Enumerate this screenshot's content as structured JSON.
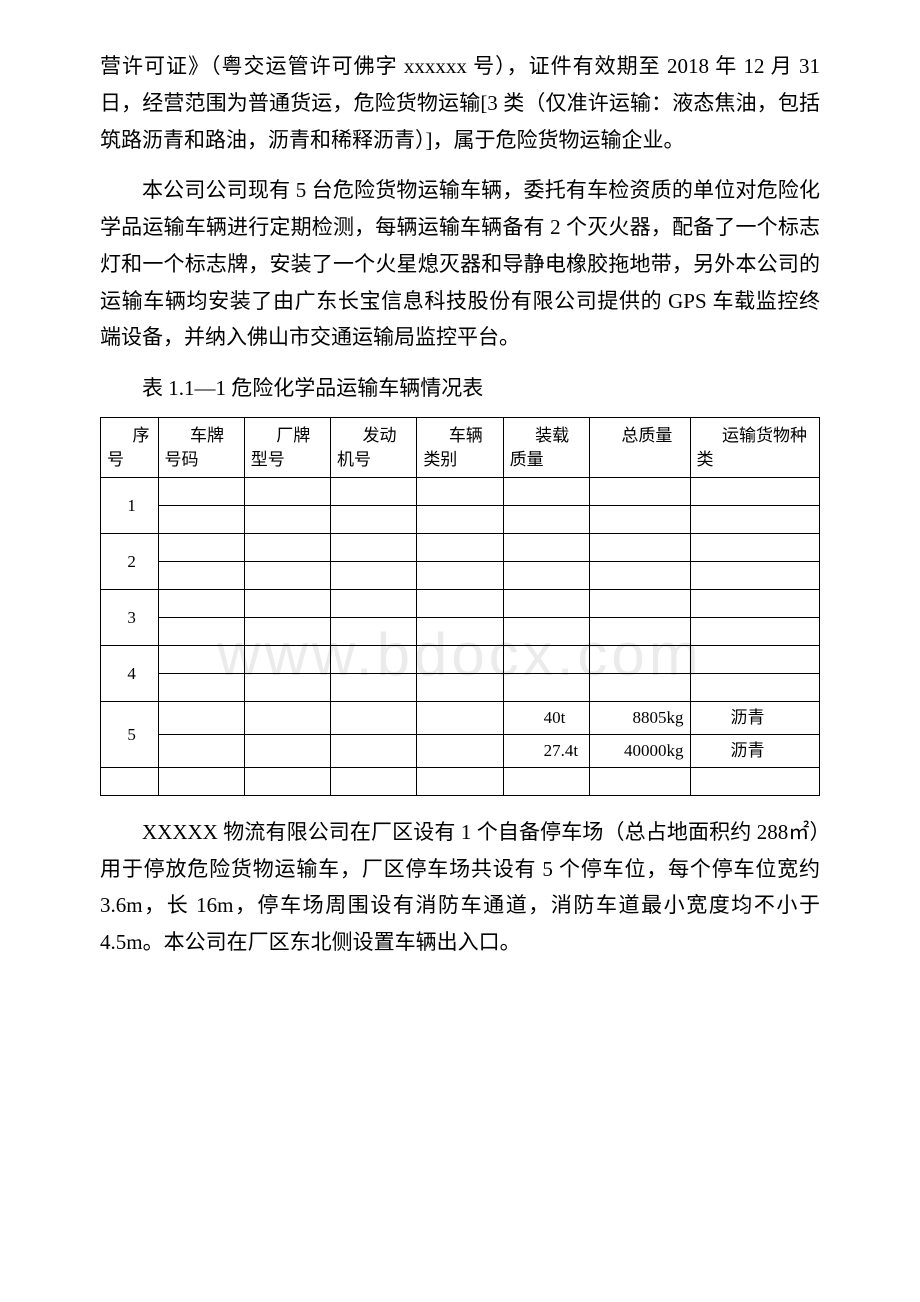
{
  "paragraphs": {
    "p1": "营许可证》（粤交运管许可佛字 xxxxxx 号），证件有效期至 2018 年 12 月 31 日，经营范围为普通货运，危险货物运输[3 类（仅准许运输：液态焦油，包括筑路沥青和路油，沥青和稀释沥青）]，属于危险货物运输企业。",
    "p2": "本公司公司现有 5 台危险货物运输车辆，委托有车检资质的单位对危险化学品运输车辆进行定期检测，每辆运输车辆备有 2 个灭火器，配备了一个标志灯和一个标志牌，安装了一个火星熄灭器和导静电橡胶拖地带，另外本公司的运输车辆均安装了由广东长宝信息科技股份有限公司提供的 GPS 车载监控终端设备，并纳入佛山市交通运输局监控平台。",
    "p3": "XXXXX 物流有限公司在厂区设有 1 个自备停车场（总占地面积约 288㎡）用于停放危险货物运输车，厂区停车场共设有 5 个停车位，每个停车位宽约 3.6m，长 16m，停车场周围设有消防车通道，消防车道最小宽度均不小于 4.5m。本公司在厂区东北侧设置车辆出入口。"
  },
  "table": {
    "title": "表 1.1—1 危险化学品运输车辆情况表",
    "headers": {
      "h0": "序号",
      "h1": "车牌号码",
      "h2": "厂牌型号",
      "h3": "发动机号",
      "h4": "车辆类别",
      "h5": "装载质量",
      "h6": "总质量",
      "h7": "运输货物种类"
    },
    "rows": {
      "r1": "1",
      "r2": "2",
      "r3": "3",
      "r4": "4",
      "r5": "5",
      "r5a_mass": "40t",
      "r5a_total": "8805kg",
      "r5a_cargo": "沥青",
      "r5b_mass": "27.4t",
      "r5b_total": "40000kg",
      "r5b_cargo": "沥青"
    }
  },
  "watermark": "www.bdocx.com"
}
